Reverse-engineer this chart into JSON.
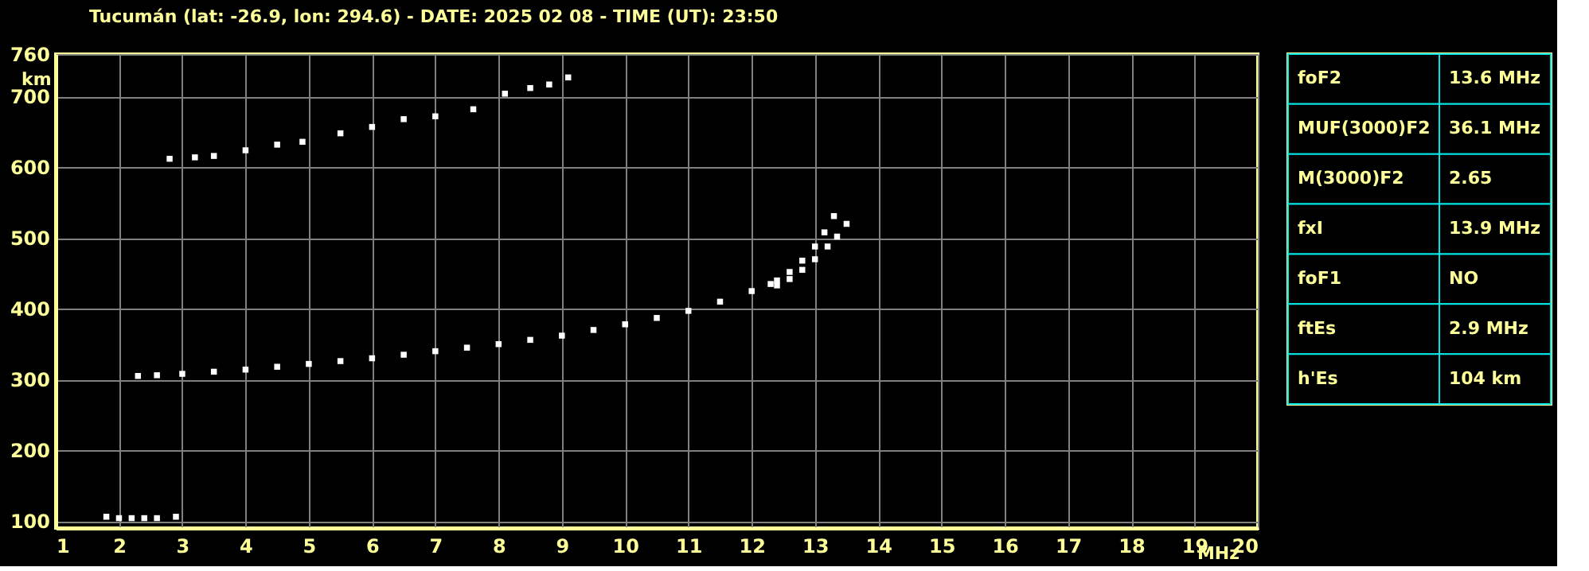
{
  "chart_data": {
    "type": "scatter",
    "title": "Tucumán (lat: -26.9, lon: 294.6) - DATE: 2025 02 08 - TIME (UT): 23:50",
    "xlabel": "MHz",
    "ylabel": "km",
    "xlim": [
      1,
      20
    ],
    "xticks": [
      1,
      2,
      3,
      4,
      5,
      6,
      7,
      8,
      9,
      10,
      11,
      12,
      13,
      14,
      15,
      16,
      17,
      18,
      19,
      20
    ],
    "ylim": [
      90,
      760
    ],
    "yticks": [
      100,
      200,
      300,
      400,
      500,
      600,
      700,
      760
    ],
    "grid": true,
    "legend": false,
    "marker": "square",
    "series": [
      {
        "color": "#ffffff",
        "x": [
          2.3,
          2.6,
          3,
          3.5,
          4,
          4.5,
          5,
          5.5,
          6,
          6.5,
          7,
          7.5,
          8,
          8.5,
          9,
          9.5,
          10,
          10.5,
          11,
          11.5,
          12,
          12.3
        ],
        "values": [
          305,
          306,
          308,
          311,
          314,
          318,
          322,
          326,
          330,
          335,
          340,
          345,
          350,
          356,
          362,
          370,
          378,
          387,
          397,
          410,
          425,
          435
        ]
      },
      {
        "color": "#ffffff",
        "x": [
          12.4,
          12.6,
          12.8,
          13,
          13.15,
          13.3
        ],
        "values": [
          440,
          452,
          468,
          488,
          508,
          531
        ]
      },
      {
        "color": "#ffffff",
        "x": [
          12.4,
          12.6,
          12.8,
          13,
          13.2,
          13.35,
          13.5
        ],
        "values": [
          433,
          442,
          455,
          470,
          488,
          502,
          520
        ]
      },
      {
        "color": "#ffffff",
        "x": [
          2.8,
          3.2,
          3.5,
          4,
          4.5,
          4.9,
          5.5,
          6,
          6.5,
          7,
          7.6,
          8.1,
          8.5,
          8.8,
          9.1
        ],
        "values": [
          612,
          614,
          616,
          624,
          632,
          636,
          648,
          657,
          668,
          672,
          682,
          704,
          712,
          717,
          727
        ]
      },
      {
        "color": "#ffffff",
        "x": [
          1.8,
          2,
          2.2,
          2.4,
          2.6,
          2.9
        ],
        "values": [
          106,
          104,
          104,
          104,
          104,
          106
        ]
      }
    ],
    "annotations": [
      "foF2",
      "13.6 MHz",
      "MUF(3000)F2",
      "36.1 MHz",
      "M(3000)F2",
      "2.65",
      "fxI",
      "13.9 MHz",
      "foF1",
      "NO",
      "ftEs",
      "2.9 MHz",
      "h'Es",
      "104 km"
    ]
  }
}
